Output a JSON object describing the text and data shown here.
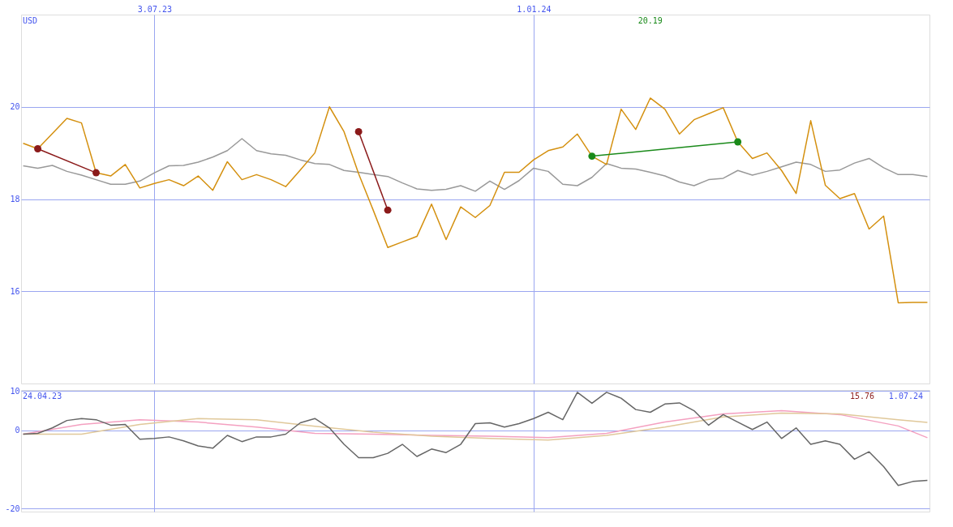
{
  "chart_data": [
    {
      "type": "line",
      "xlim": [
        "2023-04-30",
        "2024-07-09"
      ],
      "ylim": [
        14,
        22
      ],
      "yticks": [
        16,
        18,
        20
      ],
      "xticks": [
        {
          "value": "2023-07-03",
          "label": "3.07.23"
        },
        {
          "value": "2024-01-01",
          "label": "1.01.24"
        }
      ],
      "grid": true,
      "marker": "none",
      "line_style": "solid",
      "x": [
        "2023-05-01",
        "2023-05-08",
        "2023-05-15",
        "2023-05-22",
        "2023-05-29",
        "2023-06-05",
        "2023-06-12",
        "2023-06-19",
        "2023-06-26",
        "2023-07-03",
        "2023-07-10",
        "2023-07-17",
        "2023-07-24",
        "2023-07-31",
        "2023-08-07",
        "2023-08-14",
        "2023-08-21",
        "2023-08-28",
        "2023-09-04",
        "2023-09-11",
        "2023-09-18",
        "2023-09-25",
        "2023-10-02",
        "2023-10-09",
        "2023-10-16",
        "2023-10-23",
        "2023-10-30",
        "2023-11-06",
        "2023-11-13",
        "2023-11-20",
        "2023-11-27",
        "2023-12-04",
        "2023-12-11",
        "2023-12-18",
        "2023-12-25",
        "2024-01-01",
        "2024-01-08",
        "2024-01-15",
        "2024-01-22",
        "2024-01-29",
        "2024-02-05",
        "2024-02-12",
        "2024-02-19",
        "2024-02-26",
        "2024-03-04",
        "2024-03-11",
        "2024-03-18",
        "2024-03-25",
        "2024-04-01",
        "2024-04-08",
        "2024-04-15",
        "2024-04-22",
        "2024-04-29",
        "2024-05-06",
        "2024-05-13",
        "2024-05-20",
        "2024-05-27",
        "2024-06-03",
        "2024-06-10",
        "2024-06-17",
        "2024-06-24",
        "2024-07-01",
        "2024-07-08"
      ],
      "series": [
        {
          "color": "#999999",
          "values": [
            18.72,
            18.67,
            18.73,
            18.6,
            18.52,
            18.42,
            18.32,
            18.32,
            18.39,
            18.57,
            18.72,
            18.73,
            18.8,
            18.91,
            19.05,
            19.31,
            19.05,
            18.98,
            18.95,
            18.85,
            18.77,
            18.75,
            18.62,
            18.58,
            18.53,
            18.49,
            18.35,
            18.22,
            18.19,
            18.21,
            18.29,
            18.17,
            18.39,
            18.21,
            18.4,
            18.67,
            18.6,
            18.32,
            18.29,
            18.47,
            18.77,
            18.67,
            18.65,
            18.58,
            18.5,
            18.37,
            18.29,
            18.42,
            18.45,
            18.62,
            18.52,
            18.6,
            18.7,
            18.8,
            18.75,
            18.6,
            18.63,
            18.78,
            18.88,
            18.68,
            18.53,
            18.53,
            18.49
          ]
        },
        {
          "color": "#d4900f",
          "values": [
            19.21,
            19.09,
            19.42,
            19.75,
            19.65,
            18.57,
            18.5,
            18.75,
            18.24,
            18.34,
            18.42,
            18.29,
            18.5,
            18.19,
            18.81,
            18.42,
            18.53,
            18.42,
            18.27,
            18.63,
            19.0,
            20.0,
            19.46,
            18.55,
            17.76,
            16.95,
            17.07,
            17.19,
            17.89,
            17.12,
            17.83,
            17.6,
            17.86,
            18.58,
            18.58,
            18.85,
            19.05,
            19.13,
            19.41,
            18.93,
            18.75,
            19.95,
            19.51,
            20.19,
            19.95,
            19.41,
            19.72,
            19.85,
            19.98,
            19.24,
            18.88,
            19.0,
            18.62,
            18.12,
            19.7,
            18.3,
            18.01,
            18.12,
            17.35,
            17.63,
            15.75,
            15.76,
            15.76
          ]
        },
        {
          "color": "#8b1a1a",
          "marker": "circle",
          "x": [
            "2023-05-08",
            "2023-06-05"
          ],
          "values": [
            19.09,
            18.57
          ]
        },
        {
          "color": "#8b1a1a",
          "marker": "circle",
          "x": [
            "2023-10-09",
            "2023-10-23"
          ],
          "values": [
            19.46,
            17.76
          ]
        },
        {
          "color": "#1a8a1a",
          "marker": "circle",
          "x": [
            "2024-01-29",
            "2024-04-08"
          ],
          "values": [
            18.93,
            19.24
          ]
        }
      ],
      "annotations": [
        "USD",
        "20.19"
      ]
    },
    {
      "type": "line",
      "xlim": [
        "2023-04-30",
        "2024-07-09"
      ],
      "ylim": [
        -20.8,
        10.3
      ],
      "yticks": [
        -20,
        0,
        10
      ],
      "xticks": [
        {
          "value": "2023-07-03",
          "label": null
        },
        {
          "value": "2024-01-01",
          "label": null
        }
      ],
      "grid": true,
      "tick_labels": "y",
      "marker": "none",
      "line_style": "solid",
      "x": [
        "2023-05-01",
        "2023-05-08",
        "2023-05-15",
        "2023-05-22",
        "2023-05-29",
        "2023-06-05",
        "2023-06-12",
        "2023-06-19",
        "2023-06-26",
        "2023-07-03",
        "2023-07-10",
        "2023-07-17",
        "2023-07-24",
        "2023-07-31",
        "2023-08-07",
        "2023-08-14",
        "2023-08-21",
        "2023-08-28",
        "2023-09-04",
        "2023-09-11",
        "2023-09-18",
        "2023-09-25",
        "2023-10-02",
        "2023-10-09",
        "2023-10-16",
        "2023-10-23",
        "2023-10-30",
        "2023-11-06",
        "2023-11-13",
        "2023-11-20",
        "2023-11-27",
        "2023-12-04",
        "2023-12-11",
        "2023-12-18",
        "2023-12-25",
        "2024-01-01",
        "2024-01-08",
        "2024-01-15",
        "2024-01-22",
        "2024-01-29",
        "2024-02-05",
        "2024-02-12",
        "2024-02-19",
        "2024-02-26",
        "2024-03-04",
        "2024-03-11",
        "2024-03-18",
        "2024-03-25",
        "2024-04-01",
        "2024-04-08",
        "2024-04-15",
        "2024-04-22",
        "2024-04-29",
        "2024-05-06",
        "2024-05-13",
        "2024-05-20",
        "2024-05-27",
        "2024-06-03",
        "2024-06-10",
        "2024-06-17",
        "2024-06-24",
        "2024-07-01",
        "2024-07-08"
      ],
      "series": [
        {
          "color": "#f4a0c0",
          "x": [
            "2023-05-01",
            "2023-05-29",
            "2023-06-26",
            "2023-07-24",
            "2023-08-21",
            "2023-09-18",
            "2023-10-16",
            "2023-11-13",
            "2023-12-11",
            "2024-01-08",
            "2024-02-05",
            "2024-03-04",
            "2024-04-01",
            "2024-04-29",
            "2024-05-27",
            "2024-06-24",
            "2024-07-08"
          ],
          "values": [
            -1.0,
            1.5,
            2.7,
            2.1,
            0.8,
            -0.8,
            -1.0,
            -1.3,
            -1.5,
            -1.9,
            -0.8,
            2.1,
            4.2,
            5.0,
            4.0,
            1.1,
            -1.9
          ]
        },
        {
          "color": "#e0c89a",
          "x": [
            "2023-05-01",
            "2023-05-29",
            "2023-06-26",
            "2023-07-24",
            "2023-08-21",
            "2023-09-18",
            "2023-10-16",
            "2023-11-13",
            "2023-12-11",
            "2024-01-08",
            "2024-02-05",
            "2024-03-04",
            "2024-04-01",
            "2024-04-29",
            "2024-05-27",
            "2024-06-24",
            "2024-07-08"
          ],
          "values": [
            -1.0,
            -1.0,
            1.5,
            3.0,
            2.7,
            1.0,
            -0.5,
            -1.5,
            -2.1,
            -2.5,
            -1.3,
            0.8,
            3.4,
            4.4,
            4.2,
            2.7,
            2.0
          ]
        },
        {
          "color": "#666666",
          "values": [
            -1.0,
            -0.8,
            0.6,
            2.5,
            3.0,
            2.7,
            1.3,
            1.5,
            -2.3,
            -2.1,
            -1.7,
            -2.7,
            -4.0,
            -4.6,
            -1.3,
            -2.9,
            -1.7,
            -1.7,
            -1.0,
            1.9,
            3.0,
            0.6,
            -3.6,
            -7.0,
            -7.0,
            -5.9,
            -3.6,
            -6.7,
            -4.8,
            -5.7,
            -3.6,
            1.7,
            1.9,
            0.8,
            1.7,
            3.0,
            4.6,
            2.7,
            9.7,
            6.9,
            9.7,
            8.2,
            5.3,
            4.6,
            6.7,
            7.0,
            5.0,
            1.3,
            4.0,
            2.1,
            0.2,
            2.1,
            -2.1,
            0.6,
            -3.6,
            -2.7,
            -3.6,
            -7.4,
            -5.5,
            -9.3,
            -14.1,
            -13.1,
            -12.8
          ]
        }
      ],
      "annotations": [
        "24.04.23",
        "15.76",
        "1.07.24"
      ]
    }
  ]
}
